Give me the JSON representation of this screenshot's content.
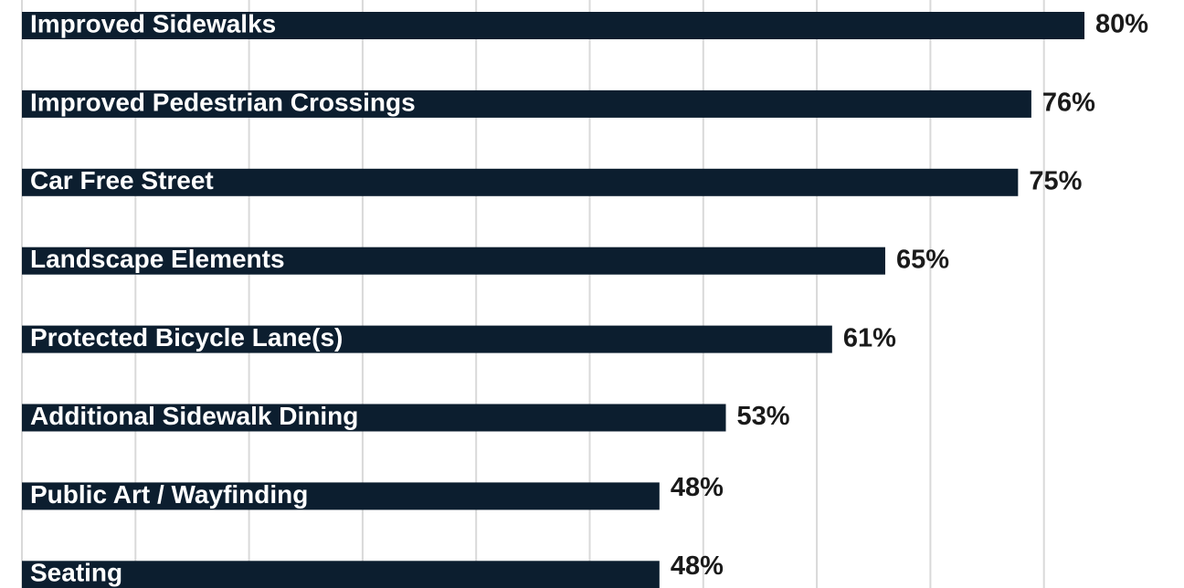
{
  "chart_data": {
    "type": "bar",
    "orientation": "horizontal",
    "categories": [
      "Improved Sidewalks",
      "Improved Pedestrian Crossings",
      "Car Free Street",
      "Landscape Elements",
      "Protected Bicycle Lane(s)",
      "Additional Sidewalk Dining",
      "Public Art / Wayfinding",
      "Seating"
    ],
    "values": [
      80,
      76,
      75,
      65,
      61,
      53,
      48,
      48
    ],
    "value_labels": [
      "80%",
      "76%",
      "75%",
      "65%",
      "61%",
      "53%",
      "48%",
      "48%"
    ],
    "color": "#0c1e2f",
    "xlim": [
      0,
      85.5
    ],
    "grid": true
  }
}
